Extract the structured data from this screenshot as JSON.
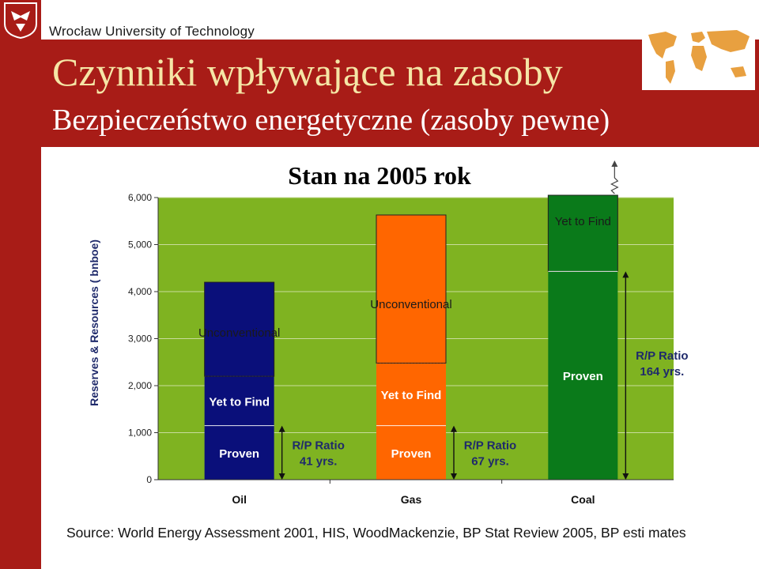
{
  "header": {
    "university": "Wrocław University of Technology",
    "title": "Czynniki wpływające na zasoby",
    "subtitle": "Bezpieczeństwo energetyczne (zasoby pewne)",
    "logo_icon": "eagle-crest-icon",
    "map_icon": "world-map-icon",
    "accent_color": "#a81c17",
    "title_color": "#f5e6a6"
  },
  "chart_title": "Stan na 2005 rok",
  "source": "Source: World Energy Assessment 2001, HIS, WoodMackenzie, BP Stat Review 2005, BP esti mates",
  "chart_data": {
    "type": "bar",
    "stacked": true,
    "categories": [
      "Oil",
      "Gas",
      "Coal"
    ],
    "ylabel": "Reserves & Resources ( bnboe)",
    "ylim": [
      0,
      6000
    ],
    "yticks": [
      "0",
      "1,000",
      "2,000",
      "3,000",
      "4,000",
      "5,000",
      "6,000"
    ],
    "ytick_values": [
      0,
      1000,
      2000,
      3000,
      4000,
      5000,
      6000
    ],
    "plot_background": "#7fb321",
    "bars": [
      {
        "category": "Oil",
        "color": "#0a0f7a",
        "segments": [
          {
            "name": "Proven",
            "value": 1150
          },
          {
            "name": "Yet to Find",
            "value": 1050
          },
          {
            "name": "Unconventional",
            "value": 2000
          }
        ],
        "rp_label": [
          "R/P Ratio",
          "41 yrs."
        ]
      },
      {
        "category": "Gas",
        "color": "#ff6600",
        "segments": [
          {
            "name": "Proven",
            "value": 1150
          },
          {
            "name": "Yet to Find",
            "value": 1330
          },
          {
            "name": "Unconventional",
            "value": 3150
          }
        ],
        "rp_label": [
          "R/P Ratio",
          "67 yrs."
        ]
      },
      {
        "category": "Coal",
        "color": "#0a7a1a",
        "segments": [
          {
            "name": "Proven",
            "value": 4430
          },
          {
            "name": "Yet to Find",
            "value": 1620
          }
        ],
        "rp_label": [
          "R/P Ratio",
          "164 yrs."
        ],
        "continues_above": true
      }
    ]
  }
}
